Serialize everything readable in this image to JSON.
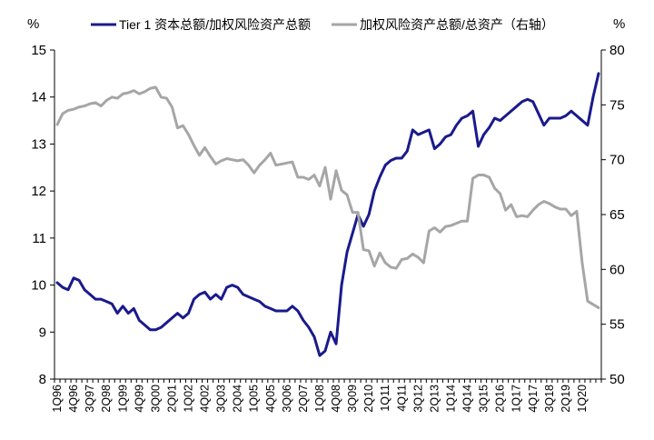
{
  "chart_data": {
    "type": "line",
    "left_unit": "%",
    "right_unit": "%",
    "y_left": {
      "min": 8,
      "max": 15,
      "ticks": [
        8,
        9,
        10,
        11,
        12,
        13,
        14,
        15
      ]
    },
    "y_right": {
      "min": 50,
      "max": 80,
      "ticks": [
        50,
        55,
        60,
        65,
        70,
        75,
        80
      ]
    },
    "x_tick_labels": [
      "1Q96",
      "4Q96",
      "3Q97",
      "2Q98",
      "1Q99",
      "4Q99",
      "3Q00",
      "2Q01",
      "1Q02",
      "4Q02",
      "3Q03",
      "2Q04",
      "1Q05",
      "4Q05",
      "3Q06",
      "2Q07",
      "1Q08",
      "4Q08",
      "3Q09",
      "2Q10",
      "1Q11",
      "4Q11",
      "3Q12",
      "2Q13",
      "1Q14",
      "4Q14",
      "3Q15",
      "2Q16",
      "1Q17",
      "4Q17",
      "3Q18",
      "2Q19",
      "1Q20"
    ],
    "legend_position": "top",
    "series": [
      {
        "name": "Tier 1 资本总额/加权风险资产总额",
        "axis": "left",
        "color": "#1a1a8c",
        "values": [
          10.05,
          9.95,
          9.9,
          10.15,
          10.1,
          9.9,
          9.8,
          9.7,
          9.7,
          9.65,
          9.6,
          9.4,
          9.55,
          9.4,
          9.5,
          9.25,
          9.15,
          9.05,
          9.05,
          9.1,
          9.2,
          9.3,
          9.4,
          9.3,
          9.4,
          9.7,
          9.8,
          9.85,
          9.7,
          9.8,
          9.7,
          9.95,
          10.0,
          9.95,
          9.8,
          9.75,
          9.7,
          9.65,
          9.55,
          9.5,
          9.45,
          9.45,
          9.45,
          9.55,
          9.45,
          9.25,
          9.1,
          8.9,
          8.5,
          8.6,
          9.0,
          8.75,
          10.0,
          10.7,
          11.1,
          11.5,
          11.25,
          11.5,
          12.0,
          12.3,
          12.55,
          12.65,
          12.7,
          12.7,
          12.85,
          13.3,
          13.2,
          13.25,
          13.3,
          12.9,
          13.0,
          13.15,
          13.2,
          13.4,
          13.55,
          13.6,
          13.7,
          12.95,
          13.2,
          13.35,
          13.55,
          13.5,
          13.6,
          13.7,
          13.8,
          13.9,
          13.95,
          13.9,
          13.65,
          13.4,
          13.55,
          13.55,
          13.55,
          13.6,
          13.7,
          13.6,
          13.5,
          13.4,
          14.0,
          14.5
        ]
      },
      {
        "name": "加权风险资产总额/总资产（右轴）",
        "axis": "right",
        "color": "#a6a6a6",
        "values": [
          73.2,
          74.2,
          74.5,
          74.6,
          74.8,
          74.9,
          75.1,
          75.2,
          74.9,
          75.4,
          75.7,
          75.6,
          76.0,
          76.1,
          76.3,
          76.0,
          76.2,
          76.5,
          76.6,
          75.7,
          75.6,
          74.8,
          72.9,
          73.1,
          72.3,
          71.3,
          70.4,
          71.1,
          70.3,
          69.6,
          69.9,
          70.1,
          70.0,
          69.9,
          70.0,
          69.5,
          68.8,
          69.5,
          70.0,
          70.6,
          69.5,
          69.6,
          69.7,
          69.8,
          68.4,
          68.4,
          68.2,
          68.6,
          67.6,
          69.3,
          66.4,
          69.0,
          67.2,
          66.8,
          65.2,
          65.2,
          61.8,
          61.7,
          60.3,
          61.5,
          60.6,
          60.2,
          60.1,
          60.9,
          61.0,
          61.4,
          61.1,
          60.6,
          63.5,
          63.8,
          63.4,
          63.9,
          64.0,
          64.2,
          64.4,
          64.4,
          68.3,
          68.6,
          68.6,
          68.4,
          67.4,
          66.9,
          65.4,
          65.9,
          64.8,
          64.9,
          64.8,
          65.4,
          65.9,
          66.2,
          66.0,
          65.7,
          65.5,
          65.5,
          64.9,
          65.3,
          60.6,
          57.1,
          56.8,
          56.5
        ]
      }
    ]
  }
}
